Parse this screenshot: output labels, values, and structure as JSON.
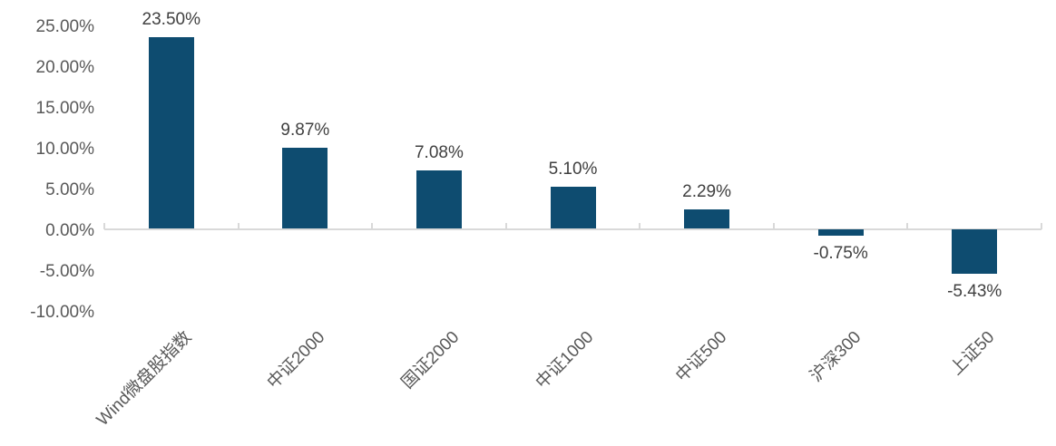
{
  "chart_data": {
    "type": "bar",
    "title": "",
    "xlabel": "",
    "ylabel": "",
    "categories": [
      "Wind微盘股指数",
      "中证2000",
      "国证2000",
      "中证1000",
      "中证500",
      "沪深300",
      "上证50"
    ],
    "values": [
      23.5,
      9.87,
      7.08,
      5.1,
      2.29,
      -0.75,
      -5.43
    ],
    "value_labels": [
      "23.50%",
      "9.87%",
      "7.08%",
      "5.10%",
      "2.29%",
      "-0.75%",
      "-5.43%"
    ],
    "y_tick_labels": [
      "25.00%",
      "20.00%",
      "15.00%",
      "10.00%",
      "5.00%",
      "0.00%",
      "-5.00%",
      "-10.00%"
    ],
    "y_tick_values": [
      25,
      20,
      15,
      10,
      5,
      0,
      -5,
      -10
    ],
    "ylim": [
      -10,
      25
    ],
    "grid": false,
    "legend": "none",
    "colors": {
      "bar": "#0e4c70",
      "axis_line": "#d9d9d9",
      "axis_label": "#595959",
      "value_label": "#404040"
    }
  }
}
